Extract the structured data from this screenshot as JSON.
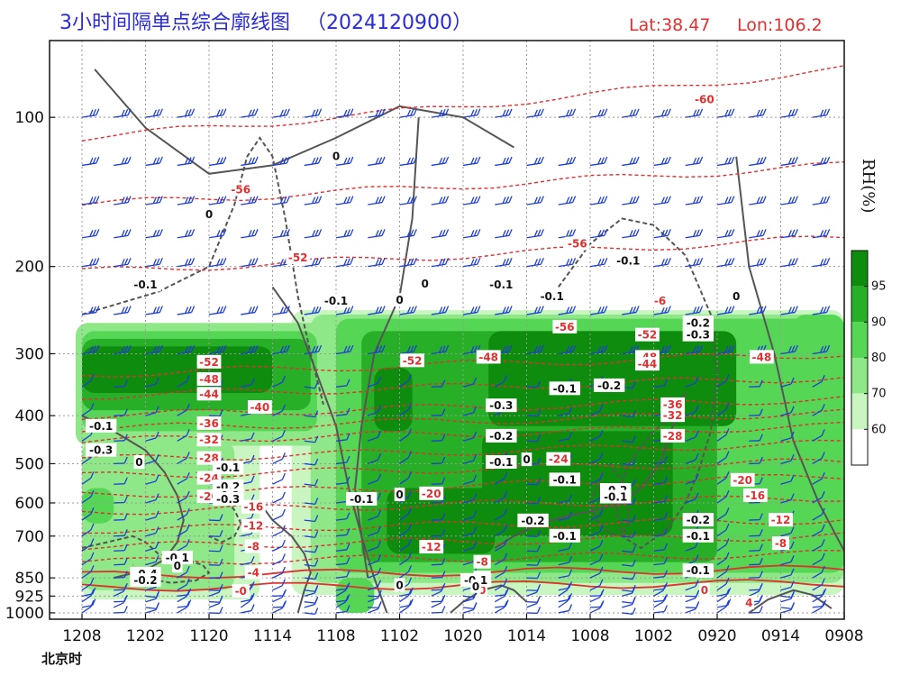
{
  "title": "3小时间隔单点综合廓线图",
  "run": "（2024120900）",
  "lat_label": "Lat:38.47",
  "lon_label": "Lon:106.2",
  "x_axis_caption": "北京时",
  "colorbar_label": "RH(%)",
  "colors": {
    "title": "#2b2bd6",
    "latlon": "#e03030",
    "temp": "#e03030",
    "omega": "#555555",
    "wind": "#1f3fd6",
    "rh_levels": [
      "#ffffff",
      "#c8f5c0",
      "#8fe888",
      "#55d655",
      "#27b027",
      "#0e8c0e"
    ]
  },
  "chart_data": {
    "type": "heatmap",
    "x_ticks": [
      "1208",
      "1202",
      "1120",
      "1114",
      "1108",
      "1102",
      "1020",
      "1014",
      "1008",
      "1002",
      "0920",
      "0914",
      "0908"
    ],
    "y_ticks": [
      100,
      200,
      300,
      400,
      500,
      600,
      700,
      850,
      925,
      1000
    ],
    "y_ticks_text": [
      "100",
      "200",
      "300",
      "400",
      "500",
      "600",
      "700",
      "850",
      "925",
      "1000"
    ],
    "colorbar_ticks": [
      60,
      70,
      80,
      90,
      95
    ],
    "colorbar_ticks_text": [
      "60",
      "70",
      "80",
      "90",
      "95"
    ],
    "rh_regions": [
      {
        "level": 95,
        "xr": [
          0.0,
          3.0
        ],
        "pr": [
          290,
          360
        ]
      },
      {
        "level": 90,
        "xr": [
          0.0,
          3.6
        ],
        "pr": [
          280,
          390
        ]
      },
      {
        "level": 80,
        "xr": [
          0.0,
          3.7
        ],
        "pr": [
          270,
          430
        ]
      },
      {
        "level": 70,
        "xr": [
          -0.1,
          3.8
        ],
        "pr": [
          260,
          460
        ]
      },
      {
        "level": 95,
        "xr": [
          4.6,
          5.2
        ],
        "pr": [
          320,
          430
        ]
      },
      {
        "level": 80,
        "xr": [
          4.3,
          5.4
        ],
        "pr": [
          300,
          470
        ]
      },
      {
        "level": 95,
        "xr": [
          6.4,
          10.3
        ],
        "pr": [
          270,
          420
        ]
      },
      {
        "level": 95,
        "xr": [
          6.3,
          9.3
        ],
        "pr": [
          430,
          700
        ]
      },
      {
        "level": 95,
        "xr": [
          4.8,
          6.5
        ],
        "pr": [
          560,
          760
        ]
      },
      {
        "level": 90,
        "xr": [
          4.4,
          10.0
        ],
        "pr": [
          270,
          790
        ]
      },
      {
        "level": 80,
        "xr": [
          4.0,
          12.0
        ],
        "pr": [
          255,
          830
        ]
      },
      {
        "level": 70,
        "xr": [
          3.6,
          12.0
        ],
        "pr": [
          250,
          870
        ]
      },
      {
        "level": 60,
        "xr": [
          3.3,
          12.0
        ],
        "pr": [
          245,
          920
        ]
      },
      {
        "level": 80,
        "xr": [
          11.2,
          12.0
        ],
        "pr": [
          250,
          340
        ]
      },
      {
        "level": 80,
        "xr": [
          0.0,
          0.5
        ],
        "pr": [
          560,
          660
        ]
      },
      {
        "level": 70,
        "xr": [
          0.0,
          2.4
        ],
        "pr": [
          450,
          900
        ]
      },
      {
        "level": 60,
        "xr": [
          0.0,
          2.8
        ],
        "pr": [
          420,
          940
        ]
      },
      {
        "level": 80,
        "xr": [
          4.0,
          4.6
        ],
        "pr": [
          850,
          1000
        ]
      }
    ],
    "temp_isotherms": [
      {
        "label": "-60",
        "x": [
          0,
          12
        ],
        "p": [
          110,
          80
        ]
      },
      {
        "label": "-56",
        "x": [
          0,
          12
        ],
        "p": [
          150,
          125
        ]
      },
      {
        "label": "-52",
        "x": [
          0,
          12
        ],
        "p": [
          205,
          175
        ]
      },
      {
        "label": "-48",
        "x": [
          0,
          12
        ],
        "p": [
          330,
          300
        ]
      },
      {
        "label": "-44",
        "x": [
          0,
          12
        ],
        "p": [
          365,
          335
        ]
      },
      {
        "label": "-40",
        "x": [
          0,
          12
        ],
        "p": [
          400,
          370
        ]
      },
      {
        "label": "-36",
        "x": [
          0,
          12
        ],
        "p": [
          425,
          395
        ]
      },
      {
        "label": "-32",
        "x": [
          0,
          12
        ],
        "p": [
          450,
          420
        ]
      },
      {
        "label": "-28",
        "x": [
          0,
          12
        ],
        "p": [
          490,
          455
        ]
      },
      {
        "label": "-24",
        "x": [
          0,
          12
        ],
        "p": [
          530,
          495
        ]
      },
      {
        "label": "-20",
        "x": [
          0,
          12
        ],
        "p": [
          580,
          530
        ]
      },
      {
        "label": "-16",
        "x": [
          0,
          12
        ],
        "p": [
          625,
          585
        ]
      },
      {
        "label": "-12",
        "x": [
          0,
          12
        ],
        "p": [
          680,
          650
        ]
      },
      {
        "label": "-8",
        "x": [
          0,
          12
        ],
        "p": [
          735,
          700
        ]
      },
      {
        "label": "-4",
        "x": [
          0,
          12
        ],
        "p": [
          790,
          760
        ]
      },
      {
        "label": "-0",
        "x": [
          0,
          12
        ],
        "p": [
          840,
          815
        ]
      },
      {
        "label": "4",
        "x": [
          0,
          12
        ],
        "p": [
          890,
          870
        ]
      }
    ],
    "temp_labels": [
      {
        "text": "-60",
        "x": 9.8,
        "p": 92
      },
      {
        "text": "-56",
        "x": 2.5,
        "p": 140
      },
      {
        "text": "-56",
        "x": 7.8,
        "p": 180
      },
      {
        "text": "-52",
        "x": 3.4,
        "p": 192
      },
      {
        "text": "-52",
        "x": 2.0,
        "p": 312
      },
      {
        "text": "-48",
        "x": 2.0,
        "p": 338
      },
      {
        "text": "-44",
        "x": 2.0,
        "p": 362
      },
      {
        "text": "-40",
        "x": 2.8,
        "p": 385
      },
      {
        "text": "-36",
        "x": 2.0,
        "p": 415
      },
      {
        "text": "-32",
        "x": 2.0,
        "p": 448
      },
      {
        "text": "-28",
        "x": 2.0,
        "p": 488
      },
      {
        "text": "-24",
        "x": 2.0,
        "p": 535
      },
      {
        "text": "-20",
        "x": 2.0,
        "p": 583
      },
      {
        "text": "-16",
        "x": 2.7,
        "p": 612
      },
      {
        "text": "-12",
        "x": 2.7,
        "p": 668
      },
      {
        "text": "-8",
        "x": 2.7,
        "p": 735
      },
      {
        "text": "-4",
        "x": 2.7,
        "p": 830
      },
      {
        "text": "-0",
        "x": 2.5,
        "p": 905
      },
      {
        "text": "-52",
        "x": 5.2,
        "p": 310
      },
      {
        "text": "-48",
        "x": 6.4,
        "p": 305
      },
      {
        "text": "-56",
        "x": 7.6,
        "p": 265
      },
      {
        "text": "-52",
        "x": 8.9,
        "p": 275
      },
      {
        "text": "-48",
        "x": 8.9,
        "p": 305
      },
      {
        "text": "-44",
        "x": 8.9,
        "p": 315
      },
      {
        "text": "-36",
        "x": 9.3,
        "p": 380
      },
      {
        "text": "-32",
        "x": 9.3,
        "p": 400
      },
      {
        "text": "-28",
        "x": 9.3,
        "p": 440
      },
      {
        "text": "-24",
        "x": 7.5,
        "p": 490
      },
      {
        "text": "-20",
        "x": 5.5,
        "p": 575
      },
      {
        "text": "-12",
        "x": 5.5,
        "p": 737
      },
      {
        "text": "-8",
        "x": 6.3,
        "p": 790
      },
      {
        "text": "-4",
        "x": 6.3,
        "p": 850
      },
      {
        "text": "0",
        "x": 6.3,
        "p": 900
      },
      {
        "text": "-6",
        "x": 9.1,
        "p": 235
      },
      {
        "text": "-48",
        "x": 10.7,
        "p": 305
      },
      {
        "text": "-20",
        "x": 10.4,
        "p": 540
      },
      {
        "text": "-16",
        "x": 10.6,
        "p": 580
      },
      {
        "text": "-12",
        "x": 11.0,
        "p": 650
      },
      {
        "text": "-8",
        "x": 11.0,
        "p": 725
      },
      {
        "text": "-4",
        "x": 9.8,
        "p": 825
      },
      {
        "text": "0",
        "x": 9.8,
        "p": 900
      },
      {
        "text": "4",
        "x": 10.5,
        "p": 955
      }
    ],
    "omega_labels": [
      {
        "text": "0",
        "x": 4.0,
        "p": 120
      },
      {
        "text": "0",
        "x": 2.0,
        "p": 157
      },
      {
        "text": "-0.1",
        "x": 1.0,
        "p": 218
      },
      {
        "text": "-0.1",
        "x": 4.0,
        "p": 235
      },
      {
        "text": "0",
        "x": 5.0,
        "p": 234
      },
      {
        "text": "0",
        "x": 5.4,
        "p": 217
      },
      {
        "text": "-0.1",
        "x": 6.6,
        "p": 218
      },
      {
        "text": "-0.1",
        "x": 8.6,
        "p": 195
      },
      {
        "text": "-0.1",
        "x": 7.4,
        "p": 230
      },
      {
        "text": "0",
        "x": 10.3,
        "p": 230
      },
      {
        "text": "-0.2",
        "x": 9.7,
        "p": 260
      },
      {
        "text": "-0.3",
        "x": 9.7,
        "p": 275
      },
      {
        "text": "-0.1",
        "x": 7.6,
        "p": 353
      },
      {
        "text": "-0.2",
        "x": 8.3,
        "p": 348
      },
      {
        "text": "-0.3",
        "x": 6.6,
        "p": 382
      },
      {
        "text": "-0.2",
        "x": 6.6,
        "p": 440
      },
      {
        "text": "-0.1",
        "x": 6.6,
        "p": 497
      },
      {
        "text": "0",
        "x": 7.0,
        "p": 491
      },
      {
        "text": "-0.1",
        "x": 7.6,
        "p": 539
      },
      {
        "text": "-0.2",
        "x": 8.4,
        "p": 566
      },
      {
        "text": "-0.1",
        "x": 8.4,
        "p": 584
      },
      {
        "text": "-0.2",
        "x": 7.1,
        "p": 652
      },
      {
        "text": "-0.1",
        "x": 7.6,
        "p": 700
      },
      {
        "text": "-0.2",
        "x": 9.7,
        "p": 650
      },
      {
        "text": "-0.1",
        "x": 9.7,
        "p": 700
      },
      {
        "text": "-0.1",
        "x": 9.7,
        "p": 822
      },
      {
        "text": "-0.1",
        "x": 0.3,
        "p": 420
      },
      {
        "text": "-0.3",
        "x": 0.3,
        "p": 470
      },
      {
        "text": "0",
        "x": 0.9,
        "p": 497
      },
      {
        "text": "-0.1",
        "x": 2.3,
        "p": 510
      },
      {
        "text": "-0.2",
        "x": 2.3,
        "p": 556
      },
      {
        "text": "-0.2",
        "x": 2.3,
        "p": 580
      },
      {
        "text": "-0.3",
        "x": 2.3,
        "p": 590
      },
      {
        "text": "-0.1",
        "x": 4.4,
        "p": 590
      },
      {
        "text": "0",
        "x": 5.0,
        "p": 578
      },
      {
        "text": "-0.1",
        "x": 1.5,
        "p": 775
      },
      {
        "text": "0",
        "x": 1.5,
        "p": 805
      },
      {
        "text": "-0.4",
        "x": 1.0,
        "p": 835
      },
      {
        "text": "-0.2",
        "x": 1.0,
        "p": 860
      },
      {
        "text": "-0.1",
        "x": 6.2,
        "p": 860
      },
      {
        "text": "0",
        "x": 6.2,
        "p": 885
      },
      {
        "text": "0",
        "x": 5.0,
        "p": 880
      }
    ],
    "omega_contours": [
      {
        "style": "solid",
        "x": [
          0.2,
          1.0,
          2.0,
          3.0,
          4.0,
          5.0,
          6.0,
          6.8
        ],
        "p": [
          80,
          105,
          130,
          125,
          110,
          95,
          100,
          115
        ]
      },
      {
        "style": "dashed",
        "x": [
          0.0,
          1.2,
          2.0,
          2.4,
          2.6,
          2.8,
          3.0,
          3.2,
          3.4,
          3.6,
          3.8
        ],
        "p": [
          250,
          225,
          200,
          150,
          120,
          110,
          120,
          160,
          230,
          300,
          380
        ]
      },
      {
        "style": "solid",
        "x": [
          3.0,
          3.4,
          3.7,
          4.0,
          4.2,
          4.4,
          4.6,
          4.8
        ],
        "p": [
          220,
          260,
          330,
          420,
          560,
          700,
          850,
          1000
        ]
      },
      {
        "style": "solid",
        "x": [
          5.3,
          5.2,
          5.0,
          4.6,
          4.4,
          4.3,
          4.4,
          4.5
        ],
        "p": [
          100,
          160,
          230,
          300,
          420,
          560,
          700,
          850
        ]
      },
      {
        "style": "solid",
        "x": [
          10.3,
          10.5,
          10.9,
          11.2,
          11.6,
          12.0
        ],
        "p": [
          120,
          200,
          300,
          450,
          600,
          750
        ]
      },
      {
        "style": "dashed",
        "x": [
          7.5,
          8.0,
          8.5,
          9.0,
          9.5,
          9.9,
          10.0,
          9.9,
          9.7,
          9.5,
          9.2,
          8.8,
          8.5,
          8.4,
          8.6,
          9.0,
          9.3
        ],
        "p": [
          220,
          180,
          160,
          165,
          190,
          250,
          330,
          430,
          520,
          600,
          680,
          740,
          700,
          600,
          500,
          430,
          400
        ]
      },
      {
        "style": "dashed",
        "x": [
          8.2,
          8.1,
          8.0,
          8.1,
          8.3,
          8.5,
          8.6,
          8.6,
          8.5,
          8.3
        ],
        "p": [
          520,
          560,
          600,
          650,
          690,
          700,
          660,
          600,
          540,
          500
        ]
      },
      {
        "style": "solid",
        "x": [
          6.5,
          6.8,
          7.2,
          7.6,
          8.1,
          8.5,
          8.8,
          9.1,
          9.3,
          9.5
        ],
        "p": [
          740,
          700,
          660,
          640,
          620,
          600,
          560,
          500,
          420,
          360
        ]
      },
      {
        "style": "dashed",
        "x": [
          0.0,
          0.4,
          0.8,
          1.0,
          1.2,
          1.6,
          1.9,
          2.0,
          1.8,
          1.4,
          1.0,
          0.8
        ],
        "p": [
          740,
          720,
          700,
          720,
          760,
          780,
          800,
          830,
          860,
          870,
          850,
          800
        ]
      },
      {
        "style": "dashed",
        "x": [
          1.8,
          2.0,
          2.2,
          2.4,
          2.5,
          2.4,
          2.2,
          2.0
        ],
        "p": [
          520,
          540,
          580,
          620,
          660,
          700,
          720,
          700
        ]
      },
      {
        "style": "solid",
        "x": [
          0.0,
          0.5,
          1.0,
          1.3,
          1.5,
          1.6,
          1.5,
          1.3,
          1.0,
          0.5
        ],
        "p": [
          400,
          430,
          470,
          520,
          580,
          650,
          720,
          780,
          820,
          850
        ]
      },
      {
        "style": "solid",
        "x": [
          2.8,
          3.0,
          3.3,
          3.5,
          3.6,
          3.5,
          3.4
        ],
        "p": [
          600,
          650,
          700,
          760,
          830,
          900,
          1000
        ]
      },
      {
        "style": "solid",
        "x": [
          5.8,
          6.0,
          6.3,
          6.6,
          6.8,
          7.0
        ],
        "p": [
          1000,
          950,
          900,
          880,
          900,
          950
        ]
      },
      {
        "style": "solid",
        "x": [
          10.5,
          10.8,
          11.2,
          11.5,
          11.8
        ],
        "p": [
          1000,
          940,
          900,
          920,
          980
        ]
      }
    ],
    "wind_barbs": {
      "x_steps": 24,
      "levels": [
        100,
        125,
        150,
        175,
        200,
        250,
        300,
        350,
        400,
        450,
        500,
        550,
        600,
        650,
        700,
        750,
        800,
        850,
        900,
        925,
        950,
        975,
        1000
      ]
    }
  }
}
